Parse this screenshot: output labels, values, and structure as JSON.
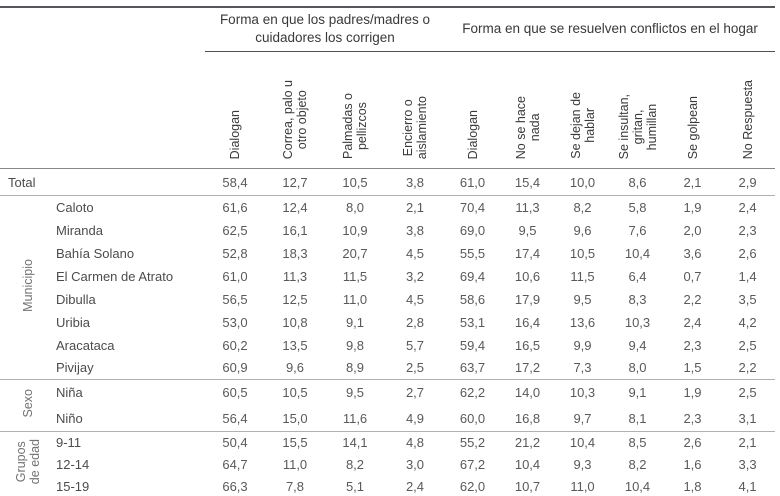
{
  "colors": {
    "rule_dark": "#57575b",
    "rule_medium": "#87878b",
    "rule_light": "#b1b1b3",
    "text_dark": "#39393b",
    "text_gray": "#59595b",
    "text_side_label": "#727274"
  },
  "header": {
    "groups": [
      {
        "title": "Forma en que los padres/madres\no cuidadores los corrigen",
        "span": 4
      },
      {
        "title": "Forma en que se resuelven conflictos en el\nhogar",
        "span": 6
      }
    ],
    "columns": [
      "Dialogan",
      "Correa, palo u\notro objeto",
      "Palmadas o\npellizcos",
      "Encierro o\naislamiento",
      "Dialogan",
      "No se hace\nnada",
      "Se dejan de\nhablar",
      "Se insultan,\ngritan,\nhumillan",
      "Se golpean",
      "No Respuesta"
    ]
  },
  "rows": {
    "total": {
      "label": "Total",
      "values": [
        "58,4",
        "12,7",
        "10,5",
        "3,8",
        "61,0",
        "15,4",
        "10,0",
        "8,6",
        "2,1",
        "2,9"
      ]
    },
    "groups": [
      {
        "label": "Municipio",
        "rows": [
          {
            "label": "Caloto",
            "values": [
              "61,6",
              "12,4",
              "8,0",
              "2,1",
              "70,4",
              "11,3",
              "8,2",
              "5,8",
              "1,9",
              "2,4"
            ]
          },
          {
            "label": "Miranda",
            "values": [
              "62,5",
              "16,1",
              "10,9",
              "3,8",
              "69,0",
              "9,5",
              "9,6",
              "7,6",
              "2,0",
              "2,3"
            ]
          },
          {
            "label": "Bahía Solano",
            "values": [
              "52,8",
              "18,3",
              "20,7",
              "4,5",
              "55,5",
              "17,4",
              "10,5",
              "10,4",
              "3,6",
              "2,6"
            ]
          },
          {
            "label": "El Carmen de Atrato",
            "values": [
              "61,0",
              "11,3",
              "11,5",
              "3,2",
              "69,4",
              "10,6",
              "11,5",
              "6,4",
              "0,7",
              "1,4"
            ]
          },
          {
            "label": "Dibulla",
            "values": [
              "56,5",
              "12,5",
              "11,0",
              "4,5",
              "58,6",
              "17,9",
              "9,5",
              "8,3",
              "2,2",
              "3,5"
            ]
          },
          {
            "label": "Uribia",
            "values": [
              "53,0",
              "10,8",
              "9,1",
              "2,8",
              "53,1",
              "16,4",
              "13,6",
              "10,3",
              "2,4",
              "4,2"
            ]
          },
          {
            "label": "Aracataca",
            "values": [
              "60,2",
              "13,5",
              "9,8",
              "5,7",
              "59,4",
              "16,5",
              "9,9",
              "9,4",
              "2,3",
              "2,5"
            ]
          },
          {
            "label": "Pivijay",
            "values": [
              "60,9",
              "9,6",
              "8,9",
              "2,5",
              "63,7",
              "17,2",
              "7,3",
              "8,0",
              "1,5",
              "2,2"
            ]
          }
        ]
      },
      {
        "label": "Sexo",
        "rows": [
          {
            "label": "Niña",
            "values": [
              "60,5",
              "10,5",
              "9,5",
              "2,7",
              "62,2",
              "14,0",
              "10,3",
              "9,1",
              "1,9",
              "2,5"
            ]
          },
          {
            "label": "Niño",
            "values": [
              "56,4",
              "15,0",
              "11,6",
              "4,9",
              "60,0",
              "16,8",
              "9,7",
              "8,1",
              "2,3",
              "3,1"
            ]
          }
        ]
      },
      {
        "label": "Grupos\nde edad",
        "rows": [
          {
            "label": "9-11",
            "values": [
              "50,4",
              "15,5",
              "14,1",
              "4,8",
              "55,2",
              "21,2",
              "10,4",
              "8,5",
              "2,6",
              "2,1"
            ]
          },
          {
            "label": "12-14",
            "values": [
              "64,7",
              "11,0",
              "8,2",
              "3,0",
              "67,2",
              "10,4",
              "9,3",
              "8,2",
              "1,6",
              "3,3"
            ]
          },
          {
            "label": "15-19",
            "values": [
              "66,3",
              "7,8",
              "5,1",
              "2,4",
              "62,0",
              "10,7",
              "11,0",
              "10,4",
              "1,8",
              "4,1"
            ]
          }
        ]
      }
    ]
  }
}
